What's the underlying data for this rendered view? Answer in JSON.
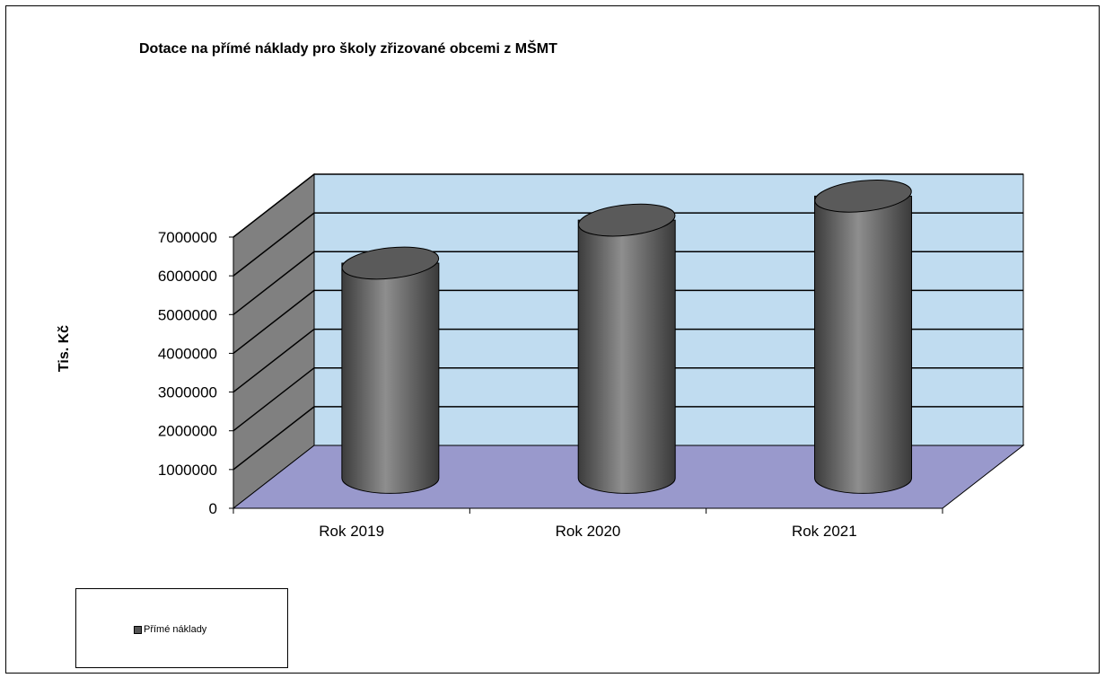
{
  "chart_data": {
    "type": "bar",
    "title": "Dotace na přímé náklady pro školy zřizované obcemi z MŠMT",
    "xlabel": "",
    "ylabel": "Tis. Kč",
    "categories": [
      "Rok 2019",
      "Rok 2020",
      "Rok 2021"
    ],
    "series": [
      {
        "name": "Přímé náklady",
        "values": [
          5550000,
          6660000,
          7280000
        ]
      }
    ],
    "ylim": [
      0,
      7000000
    ],
    "y_ticks": [
      0,
      1000000,
      2000000,
      3000000,
      4000000,
      5000000,
      6000000,
      7000000
    ],
    "y_tick_labels": [
      "0",
      "1000000",
      "2000000",
      "3000000",
      "4000000",
      "5000000",
      "6000000",
      "7000000"
    ],
    "bar_shape": "3d-cylinder",
    "grid": true,
    "legend_position": "bottom-left",
    "colors": {
      "back_wall": "#c0dcf0",
      "side_wall": "#808080",
      "floor": "#9999cc",
      "bar": "#6e6e6e"
    }
  }
}
